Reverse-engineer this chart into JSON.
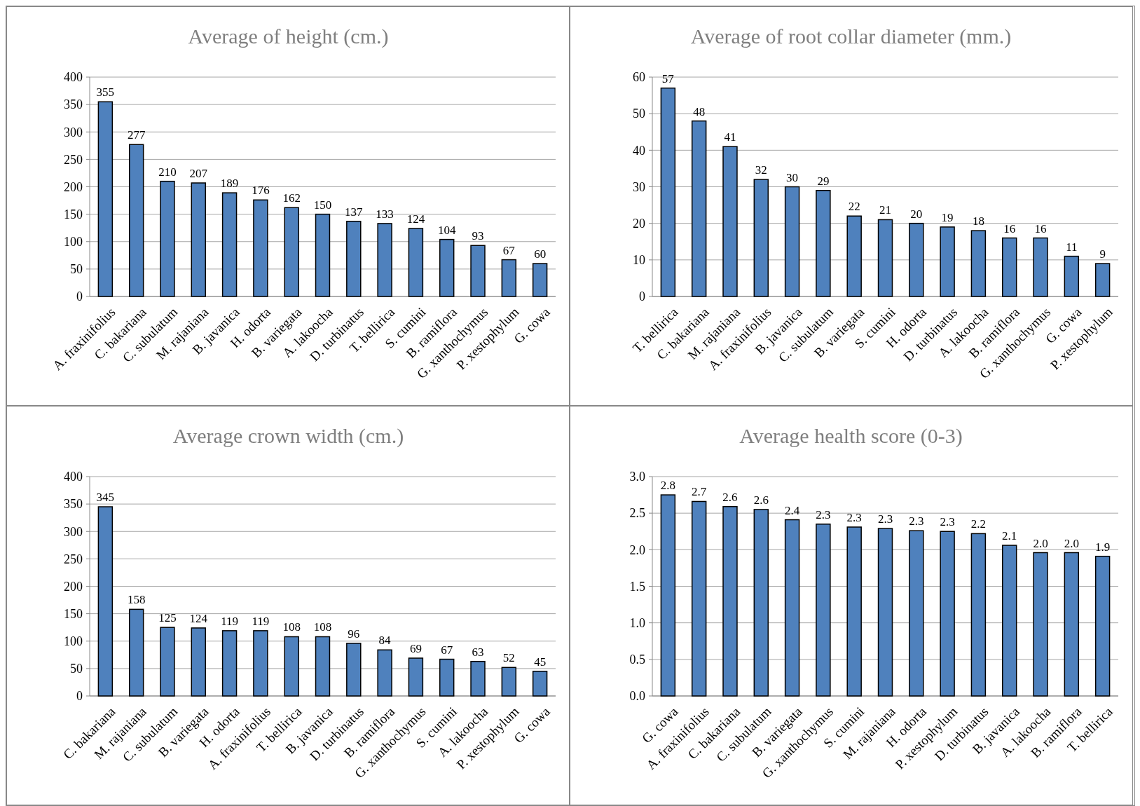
{
  "chart_data": [
    {
      "type": "bar",
      "title": "Average  of height  (cm.)",
      "categories": [
        "A. fraxinifolius",
        "C. bakariana",
        "C. subulatum",
        "M. rajaniana",
        "B. javanica",
        "H. odorta",
        "B. variegata",
        "A. lakoocha",
        "D. turbinatus",
        "T. bellirica",
        "S. cumini",
        "B. ramiflora",
        "G. xanthochymus",
        "P. xestophylum",
        "G. cowa"
      ],
      "values": [
        355,
        277,
        210,
        207,
        189,
        176,
        162,
        150,
        137,
        133,
        124,
        104,
        93,
        67,
        60
      ],
      "color": "#4f81bd",
      "ylim": [
        0,
        400
      ],
      "yticks": [
        0,
        50,
        100,
        150,
        200,
        250,
        300,
        350,
        400
      ],
      "grid": "y",
      "data_labels": true
    },
    {
      "type": "bar",
      "title": "Average  of root collar diameter  (mm.)",
      "categories": [
        "T. bellirica",
        "C. bakariana",
        "M. rajaniana",
        "A. fraxinifolius",
        "B. javanica",
        "C. subulatum",
        "B. variegata",
        "S. cumini",
        "H. odorta",
        "D. turbinatus",
        "A. lakoocha",
        "B. ramiflora",
        "G. xanthochymus",
        "G. cowa",
        "P. xestophylum"
      ],
      "values": [
        57,
        48,
        41,
        32,
        30,
        29,
        22,
        21,
        20,
        19,
        18,
        16,
        16,
        11,
        9
      ],
      "color": "#4f81bd",
      "ylim": [
        0,
        60
      ],
      "yticks": [
        0,
        10,
        20,
        30,
        40,
        50,
        60
      ],
      "grid": "y",
      "data_labels": true
    },
    {
      "type": "bar",
      "title": "Average  crown  width  (cm.)",
      "categories": [
        "C. bakariana",
        "M. rajaniana",
        "C. subulatum",
        "B. variegata",
        "H. odorta",
        "A. fraxinifolius",
        "T. bellirica",
        "B. javanica",
        "D. turbinatus",
        "B. ramiflora",
        "G. xanthochymus",
        "S. cumini",
        "A. lakoocha",
        "P. xestophylum",
        "G. cowa"
      ],
      "values": [
        345,
        158,
        125,
        124,
        119,
        119,
        108,
        108,
        96,
        84,
        69,
        67,
        63,
        52,
        45
      ],
      "color": "#4f81bd",
      "ylim": [
        0,
        400
      ],
      "yticks": [
        0,
        50,
        100,
        150,
        200,
        250,
        300,
        350,
        400
      ],
      "grid": "y",
      "data_labels": true
    },
    {
      "type": "bar",
      "title": "Average  health  score  (0-3)",
      "categories": [
        "G. cowa",
        "A. fraxinifolius",
        "C. bakariana",
        "C. subulatum",
        "B. variegata",
        "G. xanthochymus",
        "S. cumini",
        "M. rajaniana",
        "H. odorta",
        "P. xestophylum",
        "D. turbinatus",
        "B. javanica",
        "A. lakoocha",
        "B. ramiflora",
        "T. bellirica"
      ],
      "values": [
        2.75,
        2.66,
        2.59,
        2.55,
        2.41,
        2.35,
        2.31,
        2.29,
        2.26,
        2.25,
        2.22,
        2.06,
        1.96,
        1.96,
        1.91
      ],
      "value_labels": [
        "2.8",
        "2.7",
        "2.6",
        "2.6",
        "2.4",
        "2.3",
        "2.3",
        "2.3",
        "2.3",
        "2.3",
        "2.2",
        "2.1",
        "2.0",
        "2.0",
        "1.9"
      ],
      "color": "#4f81bd",
      "ylim": [
        0,
        3
      ],
      "yticks": [
        {
          "value": 0,
          "label": "0.0"
        },
        {
          "value": 0.5,
          "label": "0.5"
        },
        {
          "value": 1,
          "label": "1.0"
        },
        {
          "value": 1.5,
          "label": "1.5"
        },
        {
          "value": 2,
          "label": "2.0"
        },
        {
          "value": 2.5,
          "label": "2.5"
        },
        {
          "value": 3,
          "label": "3.0"
        }
      ],
      "grid": "y"
    }
  ]
}
